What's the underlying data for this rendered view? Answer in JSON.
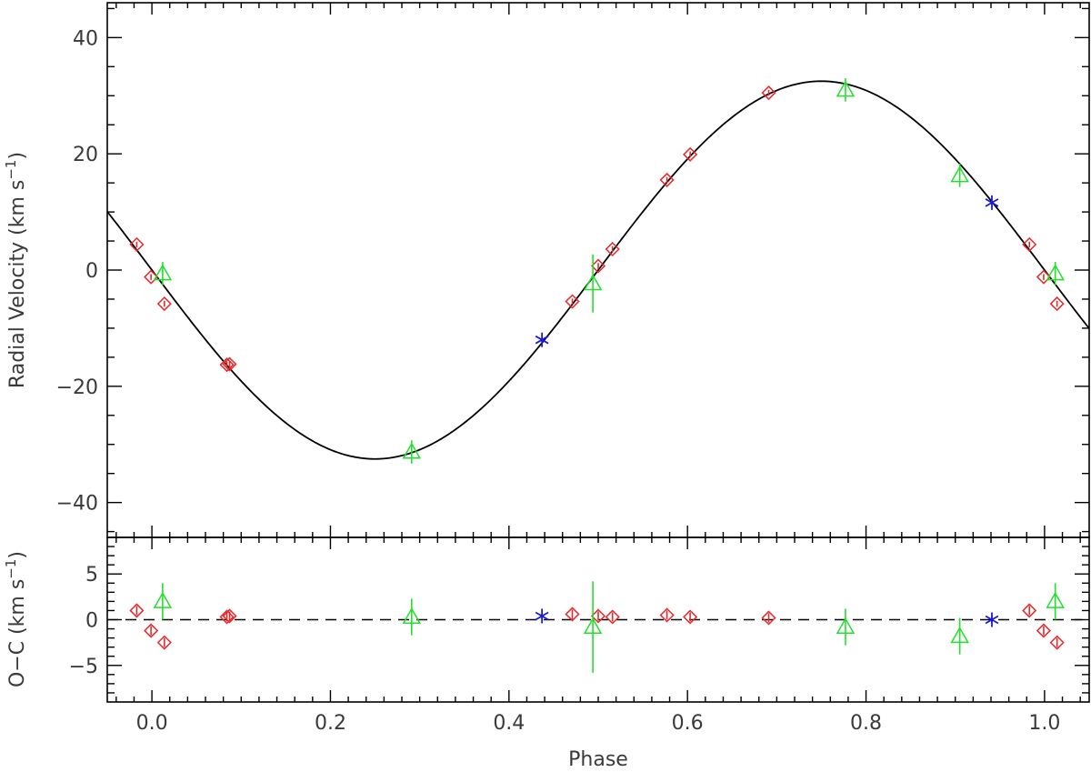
{
  "chart_data": [
    {
      "type": "scatter",
      "panel": "radial-velocity",
      "title": "",
      "xlabel": "Phase",
      "ylabel": "Radial Velocity (km s",
      "ylabel_superscript": "−1",
      "ylabel_close": ")",
      "xlim": [
        -0.05,
        1.05
      ],
      "ylim": [
        -46,
        46
      ],
      "xticks": [
        0.0,
        0.2,
        0.4,
        0.6,
        0.8,
        1.0
      ],
      "xtick_labels": [
        "0.0",
        "0.2",
        "0.4",
        "0.6",
        "0.8",
        "1.0"
      ],
      "yticks": [
        -40,
        -20,
        0,
        20,
        40
      ],
      "ytick_labels": [
        "−40",
        "−20",
        "0",
        "20",
        "40"
      ],
      "model": {
        "type": "sinusoid",
        "amplitude": 32.5,
        "gamma": 0,
        "min_phase": 0.25
      },
      "series": [
        {
          "marker": "diamond",
          "color": "#e8282b",
          "points": [
            {
              "x": -0.017,
              "y": 4.4,
              "err": 0.5
            },
            {
              "x": -0.001,
              "y": -1.2,
              "err": 0.5
            },
            {
              "x": 0.014,
              "y": -5.8,
              "err": 0.5
            },
            {
              "x": 0.084,
              "y": -16.3,
              "err": 0.5
            },
            {
              "x": 0.087,
              "y": -16.2,
              "err": 0.5
            },
            {
              "x": 0.471,
              "y": -5.4,
              "err": 0.5
            },
            {
              "x": 0.5,
              "y": 0.7,
              "err": 0.5
            },
            {
              "x": 0.516,
              "y": 3.6,
              "err": 0.5
            },
            {
              "x": 0.577,
              "y": 15.5,
              "err": 0.5
            },
            {
              "x": 0.603,
              "y": 19.9,
              "err": 0.5
            },
            {
              "x": 0.691,
              "y": 30.5,
              "err": 0.5
            },
            {
              "x": 0.983,
              "y": 4.4,
              "err": 0.5
            },
            {
              "x": 0.999,
              "y": -1.2,
              "err": 0.5
            },
            {
              "x": 1.014,
              "y": -5.8,
              "err": 0.5
            }
          ]
        },
        {
          "marker": "triangle",
          "color": "#22e02c",
          "points": [
            {
              "x": 0.012,
              "y": -0.6,
              "err": 2.0
            },
            {
              "x": 0.291,
              "y": -31.3,
              "err": 2.0
            },
            {
              "x": 0.494,
              "y": -2.3,
              "err": 5.0
            },
            {
              "x": 0.777,
              "y": 31.0,
              "err": 2.0
            },
            {
              "x": 0.905,
              "y": 16.3,
              "err": 2.0
            },
            {
              "x": 1.012,
              "y": -0.6,
              "err": 2.0
            }
          ]
        },
        {
          "marker": "asterisk",
          "color": "#1b1bd6",
          "points": [
            {
              "x": 0.437,
              "y": -12.0,
              "err": 0.3
            },
            {
              "x": 0.941,
              "y": 11.6,
              "err": 0.3
            }
          ]
        }
      ]
    },
    {
      "type": "scatter",
      "panel": "residuals",
      "title": "",
      "xlabel": "Phase",
      "ylabel": "O−C (km s",
      "ylabel_superscript": "−1",
      "ylabel_close": ")",
      "xlim": [
        -0.05,
        1.05
      ],
      "ylim": [
        -9,
        9
      ],
      "yticks": [
        -5,
        0,
        5
      ],
      "ytick_labels": [
        "−5",
        "0",
        "5"
      ],
      "series": [
        {
          "marker": "diamond",
          "color": "#e8282b",
          "points": [
            {
              "x": -0.017,
              "y": 1.0,
              "err": 0.5
            },
            {
              "x": -0.001,
              "y": -1.2,
              "err": 0.5
            },
            {
              "x": 0.014,
              "y": -2.5,
              "err": 0.5
            },
            {
              "x": 0.084,
              "y": 0.3,
              "err": 0.5
            },
            {
              "x": 0.087,
              "y": 0.4,
              "err": 0.5
            },
            {
              "x": 0.471,
              "y": 0.6,
              "err": 0.5
            },
            {
              "x": 0.5,
              "y": 0.4,
              "err": 0.5
            },
            {
              "x": 0.516,
              "y": 0.3,
              "err": 0.5
            },
            {
              "x": 0.577,
              "y": 0.5,
              "err": 0.5
            },
            {
              "x": 0.603,
              "y": 0.3,
              "err": 0.5
            },
            {
              "x": 0.691,
              "y": 0.2,
              "err": 0.5
            },
            {
              "x": 0.983,
              "y": 1.0,
              "err": 0.5
            },
            {
              "x": 0.999,
              "y": -1.2,
              "err": 0.5
            },
            {
              "x": 1.014,
              "y": -2.5,
              "err": 0.5
            }
          ]
        },
        {
          "marker": "triangle",
          "color": "#22e02c",
          "points": [
            {
              "x": 0.012,
              "y": 2.0,
              "err": 2.0
            },
            {
              "x": 0.291,
              "y": 0.3,
              "err": 2.0
            },
            {
              "x": 0.494,
              "y": -0.8,
              "err": 5.0
            },
            {
              "x": 0.777,
              "y": -0.8,
              "err": 2.0
            },
            {
              "x": 0.905,
              "y": -1.8,
              "err": 2.0
            },
            {
              "x": 1.012,
              "y": 2.0,
              "err": 2.0
            }
          ]
        },
        {
          "marker": "asterisk",
          "color": "#1b1bd6",
          "points": [
            {
              "x": 0.437,
              "y": 0.4,
              "err": 0.3
            },
            {
              "x": 0.941,
              "y": 0.0,
              "err": 0.3
            }
          ]
        }
      ]
    }
  ]
}
